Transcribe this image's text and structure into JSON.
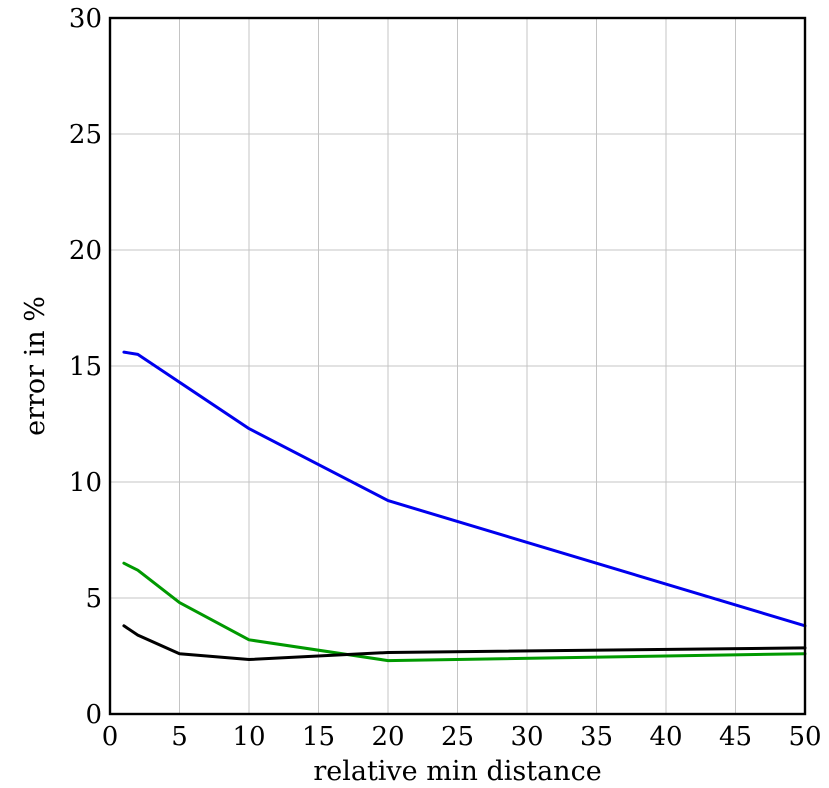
{
  "chart_data": {
    "type": "line",
    "title": "",
    "xlabel": "relative min distance",
    "ylabel": "error in %",
    "xlim": [
      0,
      50
    ],
    "ylim": [
      0,
      30
    ],
    "xticks": [
      0,
      5,
      10,
      15,
      20,
      25,
      30,
      35,
      40,
      45,
      50
    ],
    "yticks": [
      0,
      5,
      10,
      15,
      20,
      25,
      30
    ],
    "grid": true,
    "legend": "none",
    "x": [
      1,
      2,
      5,
      10,
      20,
      50
    ],
    "series": [
      {
        "color": "#0000ee",
        "values": [
          15.6,
          15.5,
          14.3,
          12.3,
          9.2,
          3.8
        ]
      },
      {
        "color": "#009900",
        "values": [
          6.5,
          6.2,
          4.8,
          3.2,
          2.3,
          2.6
        ]
      },
      {
        "color": "#000000",
        "values": [
          3.8,
          3.4,
          2.6,
          2.35,
          2.65,
          2.85
        ]
      }
    ]
  }
}
